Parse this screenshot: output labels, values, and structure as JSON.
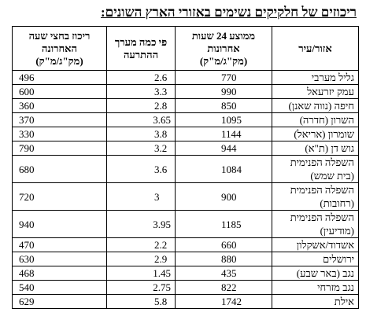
{
  "title": "ריכוזים של חלקיקים נשימים באזורי הארץ השונים:",
  "table": {
    "header": [
      "אזור/עיר",
      "ממוצע 24 שעות\nאחרונות\n(מק\"ג/מ\"ק)",
      "פי כמה מערך\nההתרעה",
      "ריכוז בחצי שעה\nהאחרונה\n(מק\"ג/מ\"ק)"
    ],
    "rows": [
      [
        "גליל מערבי",
        "770",
        "2.6",
        "496"
      ],
      [
        "עמק יזרעאל",
        "990",
        "3.3",
        "600"
      ],
      [
        "חיפה (נווה שאנן)",
        "850",
        "2.8",
        "360"
      ],
      [
        "השרון (חדרה)",
        "1095",
        "3.65",
        "370"
      ],
      [
        "שומרון (אריאל)",
        "1144",
        "3.8",
        "330"
      ],
      [
        "גוש דן (ת\"א)",
        "944",
        "3.2",
        "790"
      ],
      [
        "השפלה הפנימית\n(בית שמש)",
        "1084",
        "3.6",
        "680"
      ],
      [
        "השפלה הפנימית\n(רחובות)",
        "900",
        "3",
        "720"
      ],
      [
        "השפלה הפנימית\n(מודיעין)",
        "1185",
        "3.95",
        "940"
      ],
      [
        "אשדוד/אשקלון",
        "660",
        "2.2",
        "470"
      ],
      [
        "ירושלים",
        "880",
        "2.9",
        "630"
      ],
      [
        "נגב (באר שבע)",
        "435",
        "1.45",
        "468"
      ],
      [
        "נגב מזרחי",
        "822",
        "2.75",
        "540"
      ],
      [
        "אילת",
        "1742",
        "5.8",
        "629"
      ]
    ]
  }
}
